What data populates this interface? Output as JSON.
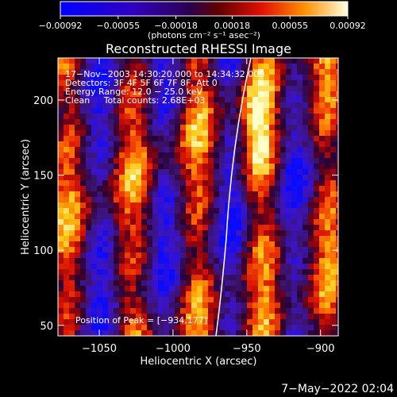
{
  "chart_data": {
    "type": "heatmap",
    "title": "Reconstructed RHESSI Image",
    "xlabel": "Heliocentric X (arcsec)",
    "ylabel": "Heliocentric Y (arcsec)",
    "xlim": [
      -1078,
      -888
    ],
    "ylim": [
      43,
      228
    ],
    "x_ticks": [
      -1050,
      -1000,
      -950,
      -900
    ],
    "x_tick_labels": [
      "−1050",
      "−1000",
      "−950",
      "−900"
    ],
    "y_ticks": [
      50,
      100,
      150,
      200
    ],
    "y_tick_labels": [
      "50",
      "100",
      "150",
      "200"
    ],
    "colorbar": {
      "min": -0.00092,
      "max": 0.00092,
      "ticks": [
        -0.00092,
        -0.00055,
        -0.00018,
        0.00018,
        0.00055,
        0.00092
      ],
      "tick_labels": [
        "−0.00092",
        "−0.00055",
        "−0.00018",
        "0.00018",
        "0.00055",
        "0.00092"
      ],
      "unit_label": "(photons cm⁻² s⁻¹ asec⁻²)"
    },
    "annotations": [
      "17−Nov−2003 14:30:20.000 to 14:34:32.000",
      "Detectors: 3F 4F 5F 6F 7F 8F, Att 0",
      "Energy Range: 12.0 − 25.0 keV",
      "Clean     Total counts: 2.68E+03"
    ],
    "peak_label": "Position of Peak = [−934,177]",
    "peak": [
      -934,
      177
    ],
    "colors": {
      "negative_low": "#0000ff",
      "mid": "#3a0060",
      "positive": "#ff2000",
      "high": "#ffff80"
    }
  },
  "footer": {
    "timestamp": "7−May−2022 02:04"
  }
}
